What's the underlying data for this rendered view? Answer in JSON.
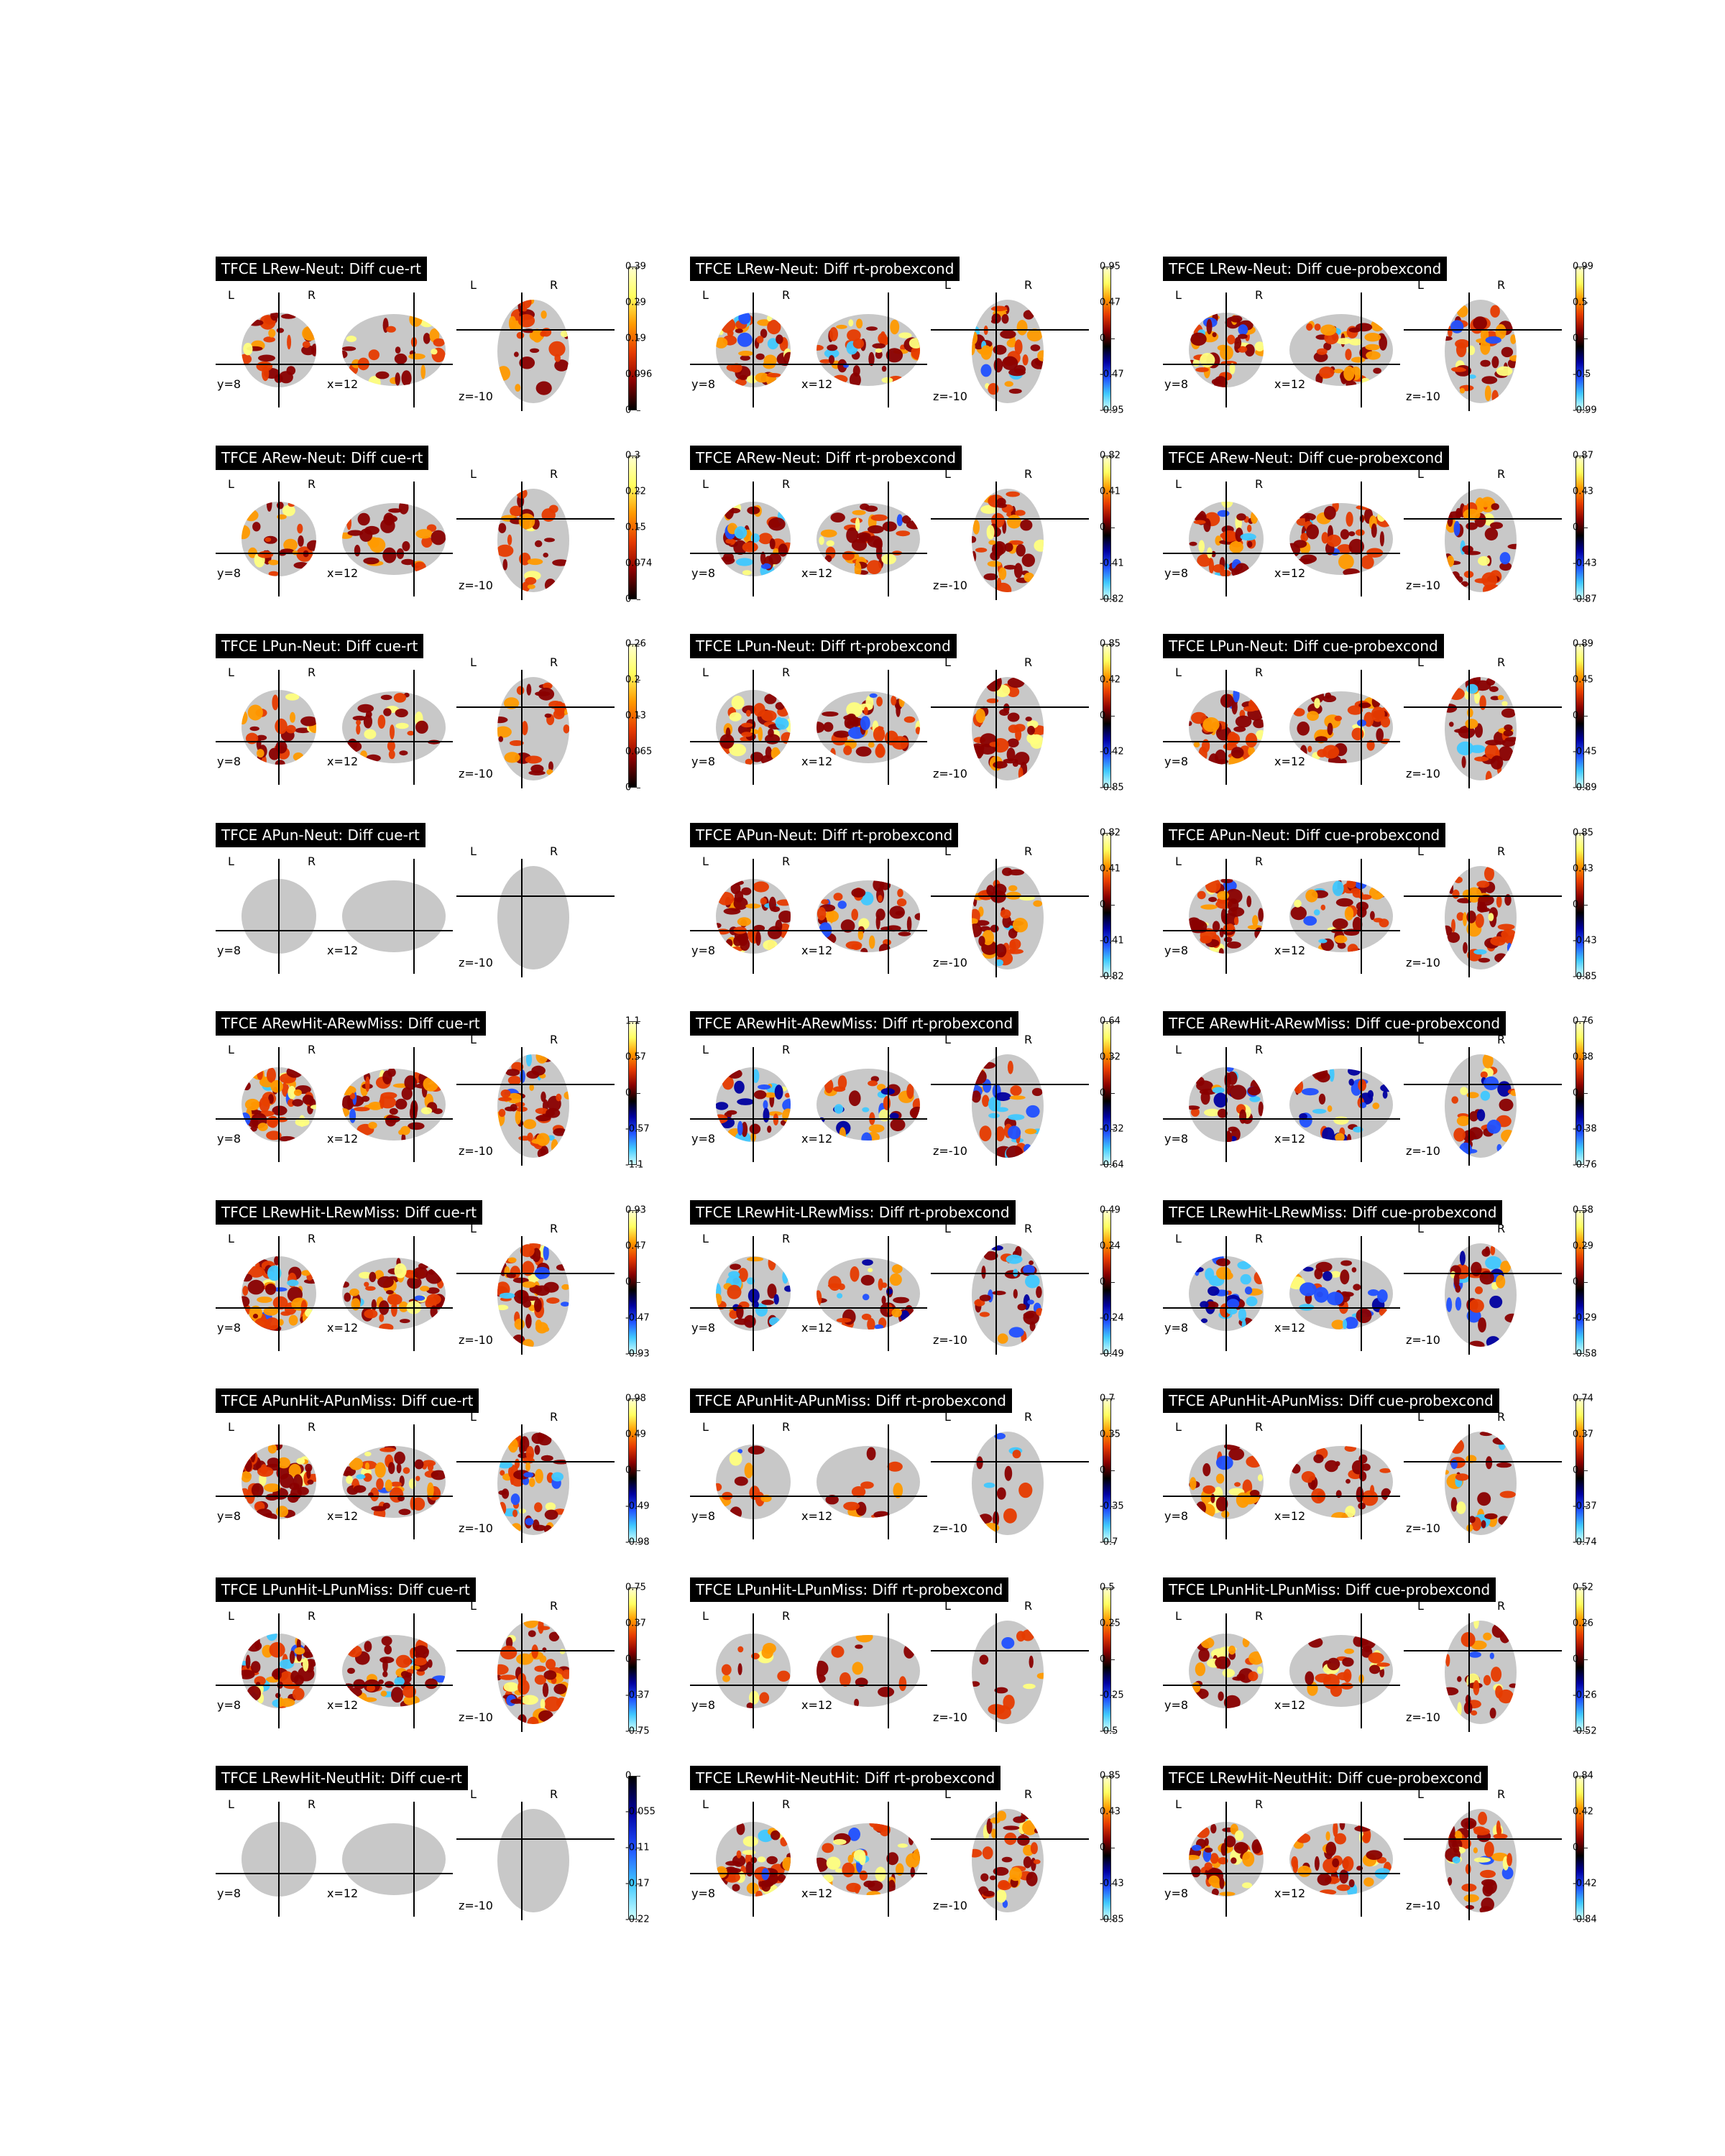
{
  "colors": {
    "background": "#ffffff",
    "title_bg": "#000000",
    "title_fg": "#ffffff",
    "brain_gray": "#c8c8c8",
    "cold_hot_positive": [
      "#8a0000",
      "#e63b00",
      "#ff9a00",
      "#ffff80"
    ],
    "cold_hot_negative": [
      "#0000a0",
      "#2050ff",
      "#40c8ff",
      "#a0ffff"
    ]
  },
  "orientation_labels": {
    "left": "L",
    "right": "R"
  },
  "coords": {
    "coronal": "y=8",
    "sagittal": "x=12",
    "axial": "z=-10"
  },
  "rows": [
    {
      "panels": [
        {
          "title": "TFCE LRew-Neut: Diff cue-rt",
          "cbar": [
            "0.39",
            "0.29",
            "0.19",
            "0.096",
            "0"
          ],
          "scale": "positive",
          "activation": "medium"
        },
        {
          "title": "TFCE LRew-Neut: Diff rt-probexcond",
          "cbar": [
            "0.95",
            "0.47",
            "0",
            "-0.47",
            "-0.95"
          ],
          "scale": "diverging",
          "activation": "high"
        },
        {
          "title": "TFCE LRew-Neut: Diff cue-probexcond",
          "cbar": [
            "0.99",
            "0.5",
            "0",
            "-0.5",
            "-0.99"
          ],
          "scale": "diverging",
          "activation": "high"
        }
      ]
    },
    {
      "panels": [
        {
          "title": "TFCE ARew-Neut: Diff cue-rt",
          "cbar": [
            "0.3",
            "0.22",
            "0.15",
            "0.074",
            "0"
          ],
          "scale": "positive",
          "activation": "medium"
        },
        {
          "title": "TFCE ARew-Neut: Diff rt-probexcond",
          "cbar": [
            "0.82",
            "0.41",
            "0",
            "-0.41",
            "-0.82"
          ],
          "scale": "diverging",
          "activation": "high"
        },
        {
          "title": "TFCE ARew-Neut: Diff cue-probexcond",
          "cbar": [
            "0.87",
            "0.43",
            "0",
            "-0.43",
            "-0.87"
          ],
          "scale": "diverging",
          "activation": "high"
        }
      ]
    },
    {
      "panels": [
        {
          "title": "TFCE LPun-Neut: Diff cue-rt",
          "cbar": [
            "0.26",
            "0.2",
            "0.13",
            "0.065",
            "0"
          ],
          "scale": "positive",
          "activation": "medium"
        },
        {
          "title": "TFCE LPun-Neut: Diff rt-probexcond",
          "cbar": [
            "0.85",
            "0.42",
            "0",
            "-0.42",
            "-0.85"
          ],
          "scale": "diverging",
          "activation": "high"
        },
        {
          "title": "TFCE LPun-Neut: Diff cue-probexcond",
          "cbar": [
            "0.89",
            "0.45",
            "0",
            "-0.45",
            "-0.89"
          ],
          "scale": "diverging",
          "activation": "high"
        }
      ]
    },
    {
      "panels": [
        {
          "title": "TFCE APun-Neut: Diff cue-rt",
          "cbar": [],
          "scale": "none",
          "activation": "none"
        },
        {
          "title": "TFCE APun-Neut: Diff rt-probexcond",
          "cbar": [
            "0.82",
            "0.41",
            "0",
            "-0.41",
            "-0.82"
          ],
          "scale": "diverging",
          "activation": "high"
        },
        {
          "title": "TFCE APun-Neut: Diff cue-probexcond",
          "cbar": [
            "0.85",
            "0.43",
            "0",
            "-0.43",
            "-0.85"
          ],
          "scale": "diverging",
          "activation": "high"
        }
      ]
    },
    {
      "panels": [
        {
          "title": "TFCE ARewHit-ARewMiss: Diff cue-rt",
          "cbar": [
            "1.1",
            "0.57",
            "0",
            "-0.57",
            "-1.1"
          ],
          "scale": "diverging",
          "activation": "full"
        },
        {
          "title": "TFCE ARewHit-ARewMiss: Diff rt-probexcond",
          "cbar": [
            "0.64",
            "0.32",
            "0",
            "-0.32",
            "-0.64"
          ],
          "scale": "diverging",
          "activation": "mixed"
        },
        {
          "title": "TFCE ARewHit-ARewMiss: Diff cue-probexcond",
          "cbar": [
            "0.76",
            "0.38",
            "0",
            "-0.38",
            "-0.76"
          ],
          "scale": "diverging",
          "activation": "mixed"
        }
      ]
    },
    {
      "panels": [
        {
          "title": "TFCE LRewHit-LRewMiss: Diff cue-rt",
          "cbar": [
            "0.93",
            "0.47",
            "0",
            "-0.47",
            "-0.93"
          ],
          "scale": "diverging",
          "activation": "full"
        },
        {
          "title": "TFCE LRewHit-LRewMiss: Diff rt-probexcond",
          "cbar": [
            "0.49",
            "0.24",
            "0",
            "-0.24",
            "-0.49"
          ],
          "scale": "diverging",
          "activation": "mixed"
        },
        {
          "title": "TFCE LRewHit-LRewMiss: Diff cue-probexcond",
          "cbar": [
            "0.58",
            "0.29",
            "0",
            "-0.29",
            "-0.58"
          ],
          "scale": "diverging",
          "activation": "mixed"
        }
      ]
    },
    {
      "panels": [
        {
          "title": "TFCE APunHit-APunMiss: Diff cue-rt",
          "cbar": [
            "0.98",
            "0.49",
            "0",
            "-0.49",
            "-0.98"
          ],
          "scale": "diverging",
          "activation": "full"
        },
        {
          "title": "TFCE APunHit-APunMiss: Diff rt-probexcond",
          "cbar": [
            "0.7",
            "0.35",
            "0",
            "-0.35",
            "-0.7"
          ],
          "scale": "diverging",
          "activation": "sparse"
        },
        {
          "title": "TFCE APunHit-APunMiss: Diff cue-probexcond",
          "cbar": [
            "0.74",
            "0.37",
            "0",
            "-0.37",
            "-0.74"
          ],
          "scale": "diverging",
          "activation": "medium"
        }
      ]
    },
    {
      "panels": [
        {
          "title": "TFCE LPunHit-LPunMiss: Diff cue-rt",
          "cbar": [
            "0.75",
            "0.37",
            "0",
            "-0.37",
            "-0.75"
          ],
          "scale": "diverging",
          "activation": "full"
        },
        {
          "title": "TFCE LPunHit-LPunMiss: Diff rt-probexcond",
          "cbar": [
            "0.5",
            "0.25",
            "0",
            "-0.25",
            "-0.5"
          ],
          "scale": "diverging",
          "activation": "sparse"
        },
        {
          "title": "TFCE LPunHit-LPunMiss: Diff cue-probexcond",
          "cbar": [
            "0.52",
            "0.26",
            "0",
            "-0.26",
            "-0.52"
          ],
          "scale": "diverging",
          "activation": "medium"
        }
      ]
    },
    {
      "panels": [
        {
          "title": "TFCE LRewHit-NeutHit: Diff cue-rt",
          "cbar": [
            "0",
            "-0.055",
            "-0.11",
            "-0.17",
            "-0.22"
          ],
          "scale": "negative",
          "activation": "none"
        },
        {
          "title": "TFCE LRewHit-NeutHit: Diff rt-probexcond",
          "cbar": [
            "0.85",
            "0.43",
            "0",
            "-0.43",
            "-0.85"
          ],
          "scale": "diverging",
          "activation": "high"
        },
        {
          "title": "TFCE LRewHit-NeutHit: Diff cue-probexcond",
          "cbar": [
            "0.84",
            "0.42",
            "0",
            "-0.42",
            "-0.84"
          ],
          "scale": "diverging",
          "activation": "high"
        }
      ]
    }
  ]
}
